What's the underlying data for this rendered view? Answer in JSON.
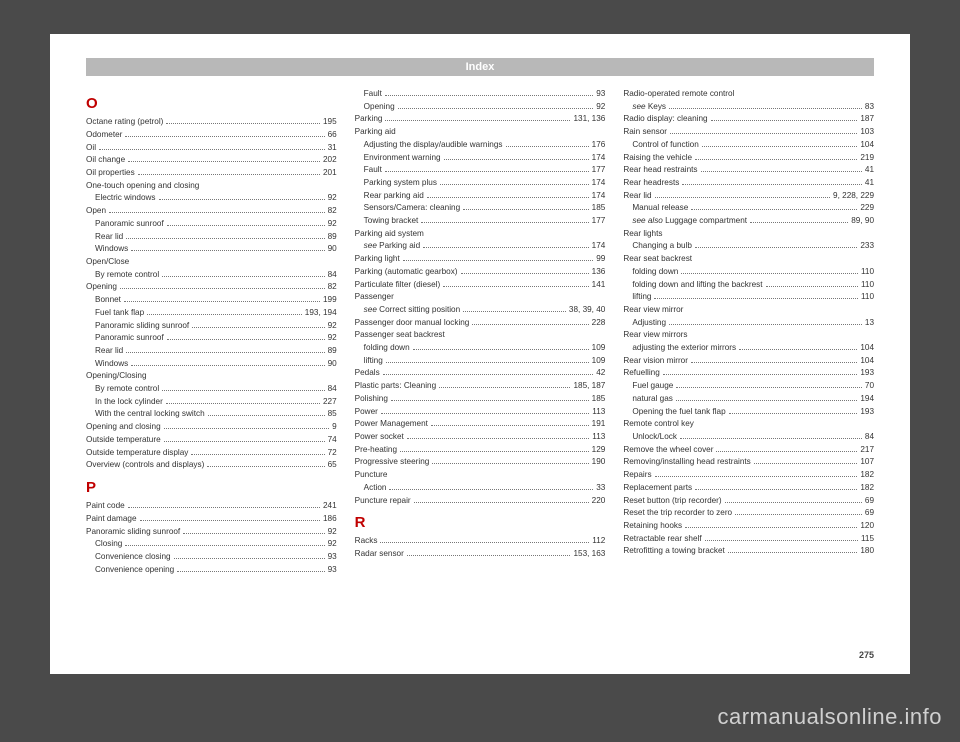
{
  "header": "Index",
  "page_number": "275",
  "watermark": "carmanualsonline.info",
  "colors": {
    "page_bg": "#ffffff",
    "body_bg": "#4a4a4a",
    "header_bg": "#b8b8b8",
    "header_fg": "#ffffff",
    "section_letter": "#c00000",
    "text": "#333333",
    "watermark": "#d0d0d0"
  },
  "columns": [
    {
      "items": [
        {
          "type": "letter",
          "text": "O"
        },
        {
          "type": "entry",
          "label": "Octane rating (petrol)",
          "page": "195"
        },
        {
          "type": "entry",
          "label": "Odometer",
          "page": "66"
        },
        {
          "type": "entry",
          "label": "Oil",
          "page": "31"
        },
        {
          "type": "entry",
          "label": "Oil change",
          "page": "202"
        },
        {
          "type": "entry",
          "label": "Oil properties",
          "page": "201"
        },
        {
          "type": "heading",
          "label": "One-touch opening and closing"
        },
        {
          "type": "entry",
          "sub": true,
          "label": "Electric windows",
          "page": "92"
        },
        {
          "type": "entry",
          "label": "Open",
          "page": "82"
        },
        {
          "type": "entry",
          "sub": true,
          "label": "Panoramic sunroof",
          "page": "92"
        },
        {
          "type": "entry",
          "sub": true,
          "label": "Rear lid",
          "page": "89"
        },
        {
          "type": "entry",
          "sub": true,
          "label": "Windows",
          "page": "90"
        },
        {
          "type": "heading",
          "label": "Open/Close"
        },
        {
          "type": "entry",
          "sub": true,
          "label": "By remote control",
          "page": "84"
        },
        {
          "type": "entry",
          "label": "Opening",
          "page": "82"
        },
        {
          "type": "entry",
          "sub": true,
          "label": "Bonnet",
          "page": "199"
        },
        {
          "type": "entry",
          "sub": true,
          "label": "Fuel tank flap",
          "page": "193, 194"
        },
        {
          "type": "entry",
          "sub": true,
          "label": "Panoramic sliding sunroof",
          "page": "92"
        },
        {
          "type": "entry",
          "sub": true,
          "label": "Panoramic sunroof",
          "page": "92"
        },
        {
          "type": "entry",
          "sub": true,
          "label": "Rear lid",
          "page": "89"
        },
        {
          "type": "entry",
          "sub": true,
          "label": "Windows",
          "page": "90"
        },
        {
          "type": "heading",
          "label": "Opening/Closing"
        },
        {
          "type": "entry",
          "sub": true,
          "label": "By remote control",
          "page": "84"
        },
        {
          "type": "entry",
          "sub": true,
          "label": "In the lock cylinder",
          "page": "227"
        },
        {
          "type": "entry",
          "sub": true,
          "label": "With the central locking switch",
          "page": "85"
        },
        {
          "type": "entry",
          "label": "Opening and closing",
          "page": "9"
        },
        {
          "type": "entry",
          "label": "Outside temperature",
          "page": "74"
        },
        {
          "type": "entry",
          "label": "Outside temperature display",
          "page": "72"
        },
        {
          "type": "entry",
          "label": "Overview (controls and displays)",
          "page": "65"
        },
        {
          "type": "letter",
          "text": "P"
        },
        {
          "type": "entry",
          "label": "Paint code",
          "page": "241"
        },
        {
          "type": "entry",
          "label": "Paint damage",
          "page": "186"
        },
        {
          "type": "entry",
          "label": "Panoramic sliding sunroof",
          "page": "92"
        },
        {
          "type": "entry",
          "sub": true,
          "label": "Closing",
          "page": "92"
        },
        {
          "type": "entry",
          "sub": true,
          "label": "Convenience closing",
          "page": "93"
        },
        {
          "type": "entry",
          "sub": true,
          "label": "Convenience opening",
          "page": "93"
        }
      ]
    },
    {
      "items": [
        {
          "type": "entry",
          "sub": true,
          "label": "Fault",
          "page": "93"
        },
        {
          "type": "entry",
          "sub": true,
          "label": "Opening",
          "page": "92"
        },
        {
          "type": "entry",
          "label": "Parking",
          "page": "131, 136"
        },
        {
          "type": "heading",
          "label": "Parking aid"
        },
        {
          "type": "entry",
          "sub": true,
          "label": "Adjusting the display/audible warnings",
          "page": "176"
        },
        {
          "type": "entry",
          "sub": true,
          "label": "Environment warning",
          "page": "174"
        },
        {
          "type": "entry",
          "sub": true,
          "label": "Fault",
          "page": "177"
        },
        {
          "type": "entry",
          "sub": true,
          "label": "Parking system plus",
          "page": "174"
        },
        {
          "type": "entry",
          "sub": true,
          "label": "Rear parking aid",
          "page": "174"
        },
        {
          "type": "entry",
          "sub": true,
          "label": "Sensors/Camera: cleaning",
          "page": "185"
        },
        {
          "type": "entry",
          "sub": true,
          "label": "Towing bracket",
          "page": "177"
        },
        {
          "type": "heading",
          "label": "Parking aid system"
        },
        {
          "type": "entry",
          "sub": true,
          "italic": "see ",
          "label": "Parking aid",
          "page": "174"
        },
        {
          "type": "entry",
          "label": "Parking light",
          "page": "99"
        },
        {
          "type": "entry",
          "label": "Parking (automatic gearbox)",
          "page": "136"
        },
        {
          "type": "entry",
          "label": "Particulate filter (diesel)",
          "page": "141"
        },
        {
          "type": "heading",
          "label": "Passenger"
        },
        {
          "type": "entry",
          "sub": true,
          "italic": "see ",
          "label": "Correct sitting position",
          "page": "38, 39, 40"
        },
        {
          "type": "entry",
          "label": "Passenger door manual locking",
          "page": "228"
        },
        {
          "type": "heading",
          "label": "Passenger seat backrest"
        },
        {
          "type": "entry",
          "sub": true,
          "label": "folding down",
          "page": "109"
        },
        {
          "type": "entry",
          "sub": true,
          "label": "lifting",
          "page": "109"
        },
        {
          "type": "entry",
          "label": "Pedals",
          "page": "42"
        },
        {
          "type": "entry",
          "label": "Plastic parts: Cleaning",
          "page": "185, 187"
        },
        {
          "type": "entry",
          "label": "Polishing",
          "page": "185"
        },
        {
          "type": "entry",
          "label": "Power",
          "page": "113"
        },
        {
          "type": "entry",
          "label": "Power Management",
          "page": "191"
        },
        {
          "type": "entry",
          "label": "Power socket",
          "page": "113"
        },
        {
          "type": "entry",
          "label": "Pre-heating",
          "page": "129"
        },
        {
          "type": "entry",
          "label": "Progressive steering",
          "page": "190"
        },
        {
          "type": "heading",
          "label": "Puncture"
        },
        {
          "type": "entry",
          "sub": true,
          "label": "Action",
          "page": "33"
        },
        {
          "type": "entry",
          "label": "Puncture repair",
          "page": "220"
        },
        {
          "type": "letter",
          "text": "R"
        },
        {
          "type": "entry",
          "label": "Racks",
          "page": "112"
        },
        {
          "type": "entry",
          "label": "Radar sensor",
          "page": "153, 163"
        }
      ]
    },
    {
      "items": [
        {
          "type": "heading",
          "label": "Radio-operated remote control"
        },
        {
          "type": "entry",
          "sub": true,
          "italic": "see ",
          "label": "Keys",
          "page": "83"
        },
        {
          "type": "entry",
          "label": "Radio display: cleaning",
          "page": "187"
        },
        {
          "type": "entry",
          "label": "Rain sensor",
          "page": "103"
        },
        {
          "type": "entry",
          "sub": true,
          "label": "Control of function",
          "page": "104"
        },
        {
          "type": "entry",
          "label": "Raising the vehicle",
          "page": "219"
        },
        {
          "type": "entry",
          "label": "Rear head restraints",
          "page": "41"
        },
        {
          "type": "entry",
          "label": "Rear headrests",
          "page": "41"
        },
        {
          "type": "entry",
          "label": "Rear lid",
          "page": "9, 228, 229"
        },
        {
          "type": "entry",
          "sub": true,
          "label": "Manual release",
          "page": "229"
        },
        {
          "type": "entry",
          "sub": true,
          "italic": "see also ",
          "label": "Luggage compartment",
          "page": "89, 90"
        },
        {
          "type": "heading",
          "label": "Rear lights"
        },
        {
          "type": "entry",
          "sub": true,
          "label": "Changing a bulb",
          "page": "233"
        },
        {
          "type": "heading",
          "label": "Rear seat backrest"
        },
        {
          "type": "entry",
          "sub": true,
          "label": "folding down",
          "page": "110"
        },
        {
          "type": "entry",
          "sub": true,
          "label": "folding down and lifting the backrest",
          "page": "110"
        },
        {
          "type": "entry",
          "sub": true,
          "label": "lifting",
          "page": "110"
        },
        {
          "type": "heading",
          "label": "Rear view mirror"
        },
        {
          "type": "entry",
          "sub": true,
          "label": "Adjusting",
          "page": "13"
        },
        {
          "type": "heading",
          "label": "Rear view mirrors"
        },
        {
          "type": "entry",
          "sub": true,
          "label": "adjusting the exterior mirrors",
          "page": "104"
        },
        {
          "type": "entry",
          "label": "Rear vision mirror",
          "page": "104"
        },
        {
          "type": "entry",
          "label": "Refuelling",
          "page": "193"
        },
        {
          "type": "entry",
          "sub": true,
          "label": "Fuel gauge",
          "page": "70"
        },
        {
          "type": "entry",
          "sub": true,
          "label": "natural gas",
          "page": "194"
        },
        {
          "type": "entry",
          "sub": true,
          "label": "Opening the fuel tank flap",
          "page": "193"
        },
        {
          "type": "heading",
          "label": "Remote control key"
        },
        {
          "type": "entry",
          "sub": true,
          "label": "Unlock/Lock",
          "page": "84"
        },
        {
          "type": "entry",
          "label": "Remove the wheel cover",
          "page": "217"
        },
        {
          "type": "entry",
          "label": "Removing/installing head restraints",
          "page": "107"
        },
        {
          "type": "entry",
          "label": "Repairs",
          "page": "182"
        },
        {
          "type": "entry",
          "label": "Replacement parts",
          "page": "182"
        },
        {
          "type": "entry",
          "label": "Reset button (trip recorder)",
          "page": "69"
        },
        {
          "type": "entry",
          "label": "Reset the trip recorder to zero",
          "page": "69"
        },
        {
          "type": "entry",
          "label": "Retaining hooks",
          "page": "120"
        },
        {
          "type": "entry",
          "label": "Retractable rear shelf",
          "page": "115"
        },
        {
          "type": "entry",
          "label": "Retrofitting a towing bracket",
          "page": "180"
        }
      ]
    }
  ]
}
